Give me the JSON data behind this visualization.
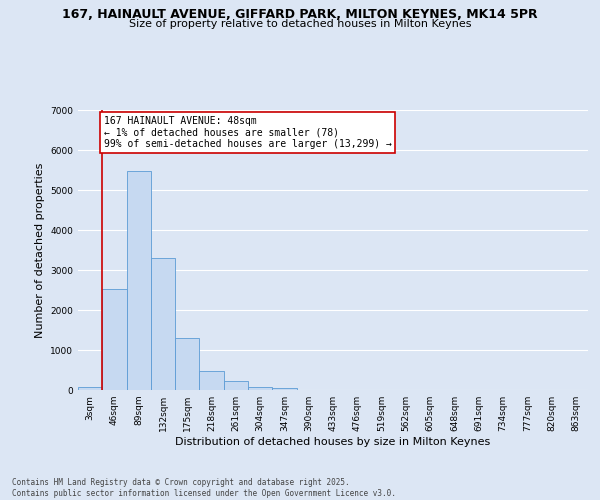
{
  "title_line1": "167, HAINAULT AVENUE, GIFFARD PARK, MILTON KEYNES, MK14 5PR",
  "title_line2": "Size of property relative to detached houses in Milton Keynes",
  "xlabel": "Distribution of detached houses by size in Milton Keynes",
  "ylabel": "Number of detached properties",
  "categories": [
    "3sqm",
    "46sqm",
    "89sqm",
    "132sqm",
    "175sqm",
    "218sqm",
    "261sqm",
    "304sqm",
    "347sqm",
    "390sqm",
    "433sqm",
    "476sqm",
    "519sqm",
    "562sqm",
    "605sqm",
    "648sqm",
    "691sqm",
    "734sqm",
    "777sqm",
    "820sqm",
    "863sqm"
  ],
  "values": [
    78,
    2520,
    5480,
    3310,
    1300,
    480,
    230,
    80,
    50,
    0,
    0,
    0,
    0,
    0,
    0,
    0,
    0,
    0,
    0,
    0,
    0
  ],
  "bar_color": "#c6d9f1",
  "bar_edge_color": "#5b9bd5",
  "vline_color": "#cc0000",
  "vline_x_index": 0.5,
  "annotation_text": "167 HAINAULT AVENUE: 48sqm\n← 1% of detached houses are smaller (78)\n99% of semi-detached houses are larger (13,299) →",
  "annotation_box_color": "#ffffff",
  "annotation_box_edge": "#cc0000",
  "ylim": [
    0,
    7000
  ],
  "yticks": [
    0,
    1000,
    2000,
    3000,
    4000,
    5000,
    6000,
    7000
  ],
  "background_color": "#dce6f4",
  "plot_bg_color": "#dce6f4",
  "footer": "Contains HM Land Registry data © Crown copyright and database right 2025.\nContains public sector information licensed under the Open Government Licence v3.0.",
  "title_fontsize": 9,
  "subtitle_fontsize": 8,
  "tick_fontsize": 6.5,
  "ylabel_fontsize": 8,
  "xlabel_fontsize": 8,
  "footer_fontsize": 5.5,
  "annotation_fontsize": 7
}
